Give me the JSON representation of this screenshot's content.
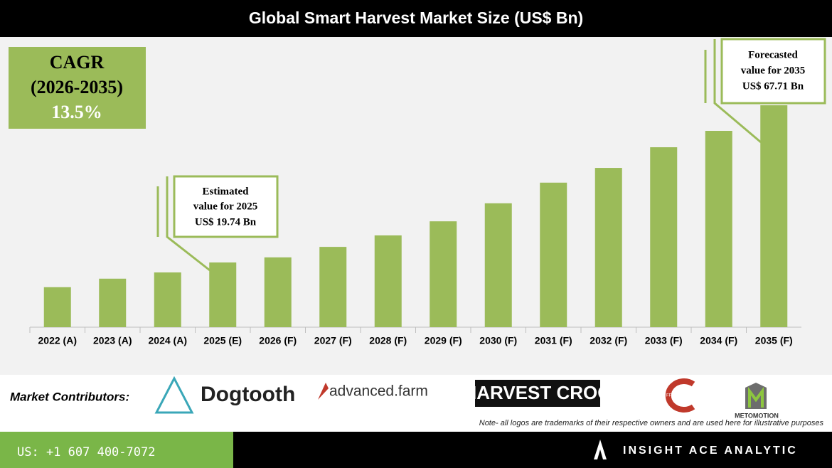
{
  "chart_data": {
    "type": "bar",
    "title": "Global Smart Harvest Market Size (US$ Bn)",
    "categories": [
      "2022 (A)",
      "2023 (A)",
      "2024 (A)",
      "2025 (E)",
      "2026 (F)",
      "2027 (F)",
      "2028 (F)",
      "2029 (F)",
      "2030 (F)",
      "2031 (F)",
      "2032 (F)",
      "2033 (F)",
      "2034 (F)",
      "2035 (F)"
    ],
    "values": [
      12.2,
      14.8,
      16.7,
      19.74,
      21.3,
      24.5,
      28.0,
      32.3,
      37.8,
      44.1,
      48.6,
      54.9,
      59.9,
      67.71
    ],
    "color": "#9bbb59",
    "annotations": [
      {
        "lines": [
          "Estimated",
          "value for 2025",
          "US$ 19.74 Bn"
        ]
      },
      {
        "lines": [
          "Forecasted",
          "value for 2035",
          "US$ 67.71 Bn"
        ]
      }
    ]
  },
  "cagr": {
    "label": "CAGR",
    "period": "(2026-2035)",
    "value": "13.5%"
  },
  "contributors": {
    "heading": "Market Contributors:",
    "logos": [
      "Dogtooth",
      "advanced.farm",
      "HARVEST CROO",
      "FF Robotics",
      "METOMOTION"
    ],
    "note": "Note- all logos are trademarks of their respective owners and are used here for illustrative purposes"
  },
  "footer": {
    "phone": "US: +1 607 400-7072",
    "brand": "INSIGHT ACE ANALYTIC"
  }
}
